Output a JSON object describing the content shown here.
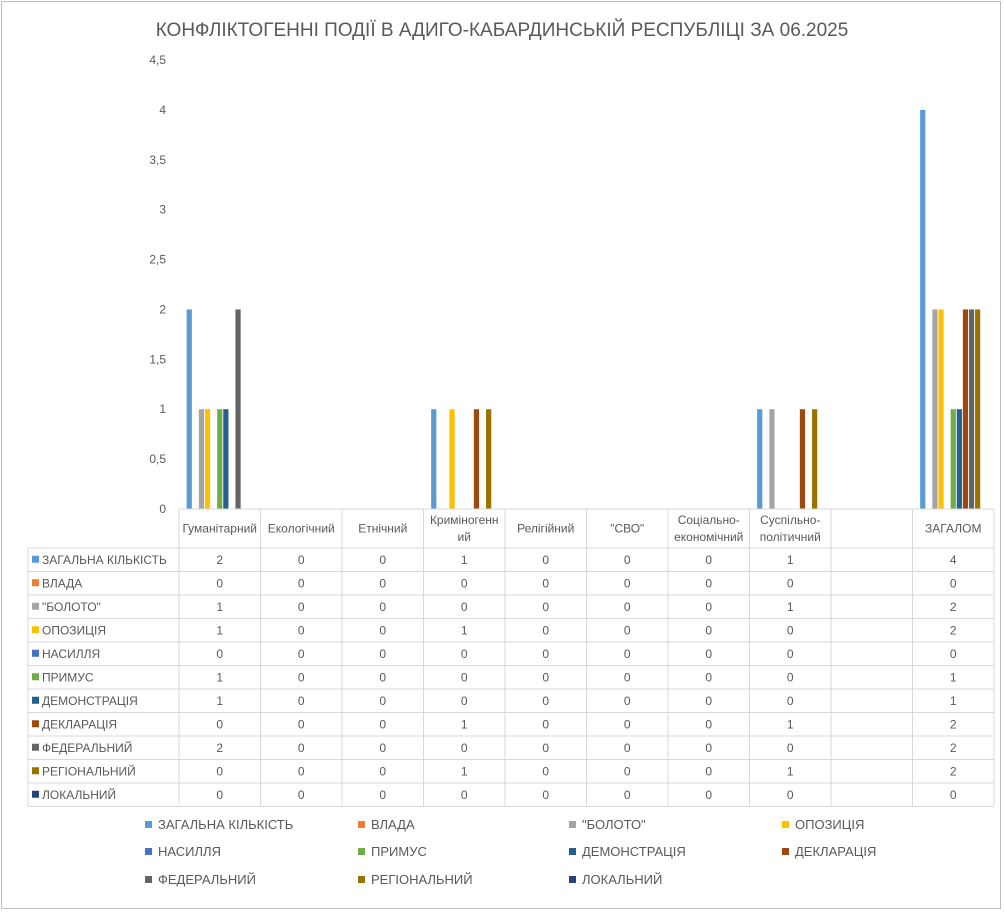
{
  "chart_data": {
    "type": "bar",
    "title": "КОНФЛІКТОГЕННІ ПОДІЇ В АДИГО-КАБАРДИНСЬКІЙ РЕСПУБЛІЦІ ЗА 06.2025",
    "categories": [
      [
        "Гуманітарний"
      ],
      [
        "Екологічний"
      ],
      [
        "Етнічний"
      ],
      [
        "Криміногенн",
        "ий"
      ],
      [
        "Релігійний"
      ],
      [
        "\"СВО\""
      ],
      [
        "Соціально-",
        "економічний"
      ],
      [
        "Суспільно-",
        "політичний"
      ],
      [
        ""
      ],
      [
        "ЗАГАЛОМ"
      ]
    ],
    "ylim": [
      0,
      4.5
    ],
    "y_ticks": [
      "0",
      "0,5",
      "1",
      "1,5",
      "2",
      "2,5",
      "3",
      "3,5",
      "4",
      "4,5"
    ],
    "grid": false,
    "legend_position": "bottom",
    "data_table": true,
    "series": [
      {
        "name": "ЗАГАЛЬНА КІЛЬКІСТЬ",
        "color": "#5b9bd5",
        "values": [
          2,
          0,
          0,
          1,
          0,
          0,
          0,
          1,
          null,
          4
        ]
      },
      {
        "name": "ВЛАДА",
        "color": "#ed7d31",
        "values": [
          0,
          0,
          0,
          0,
          0,
          0,
          0,
          0,
          null,
          0
        ]
      },
      {
        "name": "\"БОЛОТО\"",
        "color": "#a5a5a5",
        "values": [
          1,
          0,
          0,
          0,
          0,
          0,
          0,
          1,
          null,
          2
        ]
      },
      {
        "name": "ОПОЗИЦІЯ",
        "color": "#ffc000",
        "values": [
          1,
          0,
          0,
          1,
          0,
          0,
          0,
          0,
          null,
          2
        ]
      },
      {
        "name": "НАСИЛЛЯ",
        "color": "#4472c4",
        "values": [
          0,
          0,
          0,
          0,
          0,
          0,
          0,
          0,
          null,
          0
        ]
      },
      {
        "name": "ПРИМУС",
        "color": "#70ad47",
        "values": [
          1,
          0,
          0,
          0,
          0,
          0,
          0,
          0,
          null,
          1
        ]
      },
      {
        "name": "ДЕМОНСТРАЦІЯ",
        "color": "#255e91",
        "values": [
          1,
          0,
          0,
          0,
          0,
          0,
          0,
          0,
          null,
          1
        ]
      },
      {
        "name": "ДЕКЛАРАЦІЯ",
        "color": "#9e480e",
        "values": [
          0,
          0,
          0,
          1,
          0,
          0,
          0,
          1,
          null,
          2
        ]
      },
      {
        "name": "ФЕДЕРАЛЬНИЙ",
        "color": "#636363",
        "values": [
          2,
          0,
          0,
          0,
          0,
          0,
          0,
          0,
          null,
          2
        ]
      },
      {
        "name": "РЕГІОНАЛЬНИЙ",
        "color": "#997300",
        "values": [
          0,
          0,
          0,
          1,
          0,
          0,
          0,
          1,
          null,
          2
        ]
      },
      {
        "name": "ЛОКАЛЬНИЙ",
        "color": "#264478",
        "values": [
          0,
          0,
          0,
          0,
          0,
          0,
          0,
          0,
          null,
          0
        ]
      }
    ]
  }
}
